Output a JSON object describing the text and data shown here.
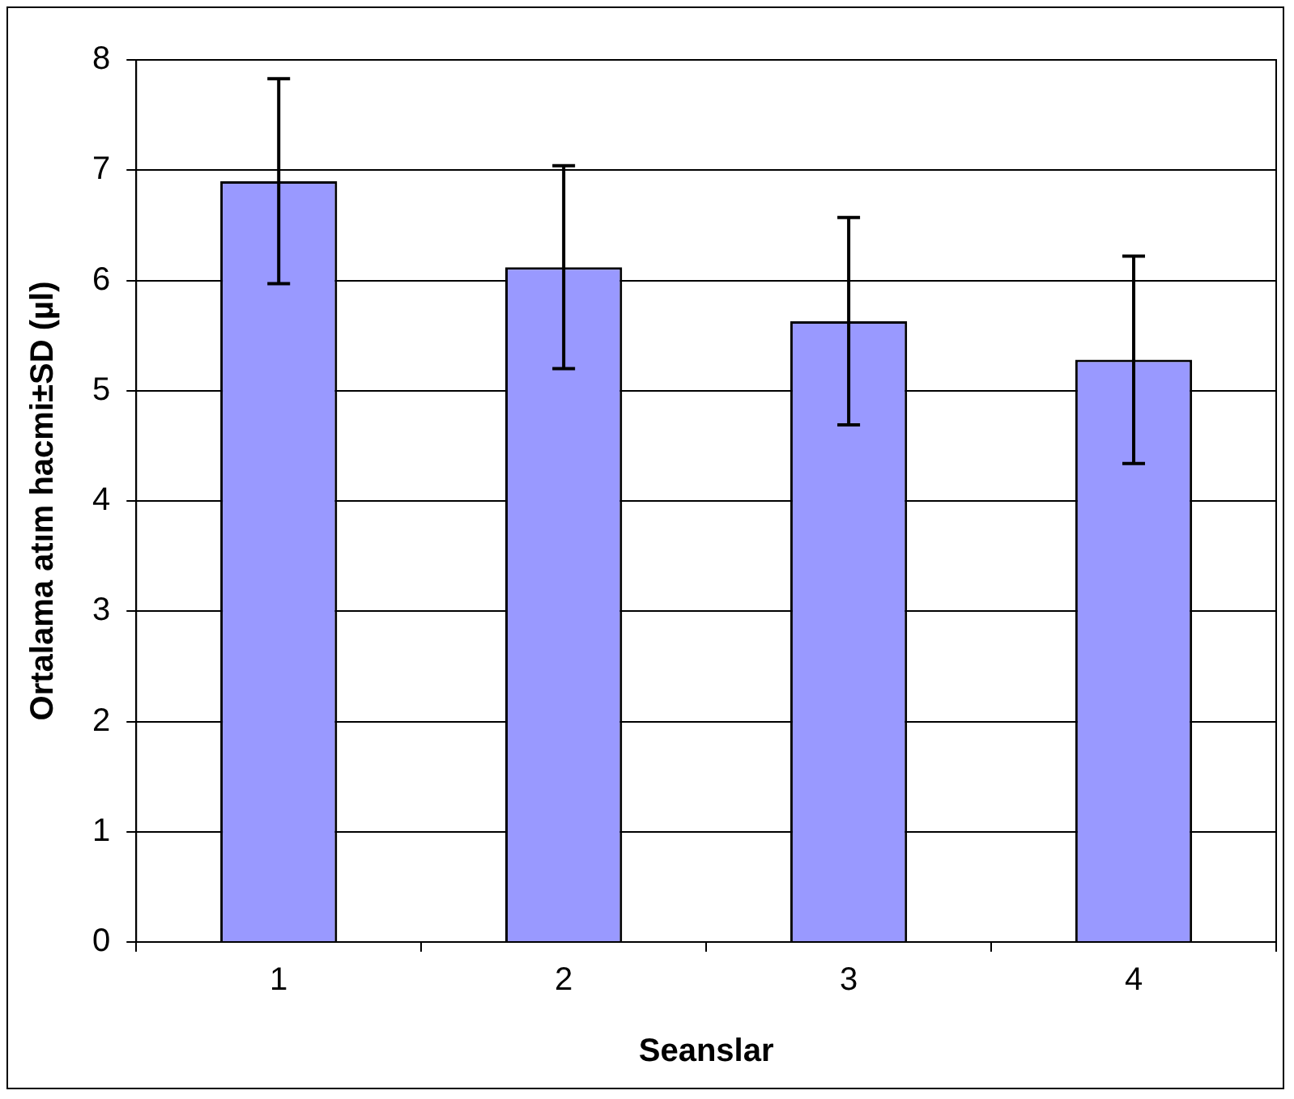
{
  "chart_data": {
    "type": "bar",
    "xlabel": "Seanslar",
    "ylabel": "Ortalama atım hacmi±SD (µl)",
    "categories": [
      "1",
      "2",
      "3",
      "4"
    ],
    "values": [
      6.9,
      6.12,
      5.63,
      5.28
    ],
    "errors": [
      0.93,
      0.92,
      0.94,
      0.94
    ],
    "color": "#9999ff",
    "ylim": [
      0,
      8
    ],
    "yticks": [
      0,
      1,
      2,
      3,
      4,
      5,
      6,
      7,
      8
    ],
    "grid": "y",
    "legend": false
  }
}
